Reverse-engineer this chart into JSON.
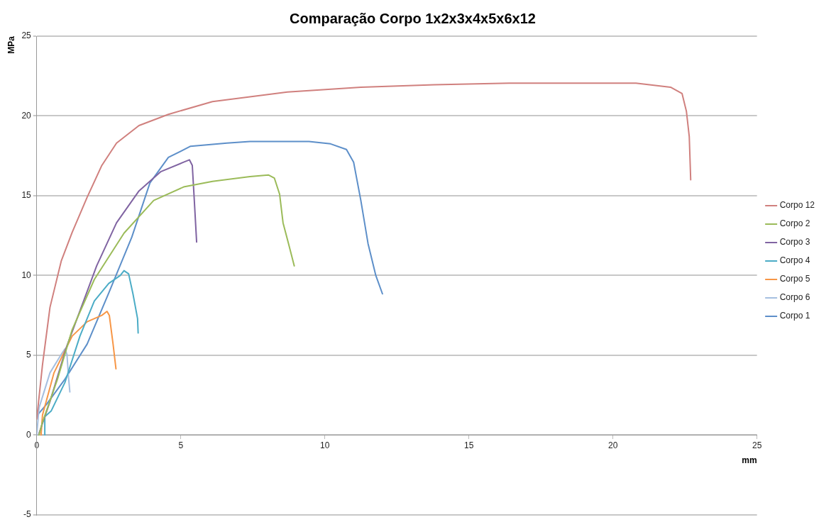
{
  "chart_data": {
    "type": "line",
    "title": "Comparação Corpo 1x2x3x4x5x6x12",
    "xlabel": "mm",
    "ylabel": "MPa",
    "xlim": [
      0,
      25
    ],
    "xticks": [
      0,
      5,
      10,
      15,
      20,
      25
    ],
    "ylim": [
      -5,
      25
    ],
    "yticks": [
      -5,
      0,
      5,
      10,
      15,
      20,
      25
    ],
    "grid": "y",
    "legend": "right",
    "marker": "none",
    "line_style": "solid",
    "series": [
      {
        "name": "Corpo 12",
        "color": "#d0807e",
        "x": [
          0,
          0.2,
          0.46,
          0.85,
          1.23,
          1.75,
          2.26,
          2.77,
          3.55,
          4.57,
          6.1,
          8.7,
          11.25,
          13.8,
          16.4,
          19,
          20.8,
          22.0,
          22.4,
          22.55,
          22.65,
          22.7
        ],
        "values": [
          1.0,
          4.4,
          8.0,
          10.9,
          12.7,
          14.9,
          16.9,
          18.3,
          19.4,
          20.1,
          20.9,
          21.5,
          21.8,
          21.95,
          22.05,
          22.05,
          22.05,
          21.8,
          21.4,
          20.3,
          18.7,
          16.0
        ]
      },
      {
        "name": "Corpo 2",
        "color": "#9bbb59",
        "x": [
          0.08,
          0.2,
          0.72,
          1.23,
          2.0,
          3.03,
          4.06,
          5.1,
          6.1,
          7.4,
          8.04,
          8.25,
          8.43,
          8.55,
          8.74,
          8.94
        ],
        "values": [
          0,
          0.8,
          3.5,
          6.6,
          9.75,
          12.65,
          14.7,
          15.55,
          15.9,
          16.2,
          16.3,
          16.1,
          15.1,
          13.3,
          12.0,
          10.6
        ]
      },
      {
        "name": "Corpo 3",
        "color": "#8064a2",
        "x": [
          0.08,
          0.46,
          1.03,
          2.08,
          2.77,
          3.55,
          4.3,
          5.1,
          5.3,
          5.4,
          5.47,
          5.55
        ],
        "values": [
          0.1,
          2.1,
          5.5,
          10.6,
          13.3,
          15.3,
          16.5,
          17.1,
          17.25,
          16.9,
          14.7,
          12.1
        ]
      },
      {
        "name": "Corpo 4",
        "color": "#4bacc6",
        "x": [
          0.28,
          0.28,
          0.5,
          0.98,
          1.5,
          2.0,
          2.5,
          2.9,
          3.03,
          3.19,
          3.34,
          3.5,
          3.52
        ],
        "values": [
          0,
          1.15,
          1.5,
          3.3,
          6.2,
          8.4,
          9.5,
          10.0,
          10.3,
          10.1,
          8.85,
          7.3,
          6.4
        ]
      },
      {
        "name": "Corpo 5",
        "color": "#f79646",
        "x": [
          0.15,
          0.2,
          0.6,
          1.23,
          1.75,
          2.26,
          2.44,
          2.52,
          2.65,
          2.75
        ],
        "values": [
          0,
          1.25,
          3.9,
          6.2,
          7.1,
          7.5,
          7.75,
          7.5,
          5.7,
          4.15
        ]
      },
      {
        "name": "Corpo 6",
        "color": "#a5bfe0",
        "x": [
          0,
          0.08,
          0.46,
          0.85,
          0.98,
          1.05,
          1.1,
          1.15
        ],
        "values": [
          0,
          1.7,
          3.9,
          5.05,
          5.4,
          5.05,
          3.7,
          2.7
        ]
      },
      {
        "name": "Corpo 1",
        "color": "#5d8fc9",
        "x": [
          0,
          0.33,
          0.98,
          1.75,
          2.5,
          3.3,
          3.93,
          4.57,
          5.34,
          6.6,
          7.4,
          9.45,
          10.2,
          10.75,
          11.0,
          11.25,
          11.5,
          11.77,
          12.0
        ],
        "values": [
          1.2,
          1.9,
          3.5,
          5.7,
          8.9,
          12.4,
          15.8,
          17.4,
          18.1,
          18.3,
          18.4,
          18.4,
          18.25,
          17.9,
          17.1,
          14.7,
          12.0,
          10.0,
          8.85
        ]
      }
    ]
  }
}
